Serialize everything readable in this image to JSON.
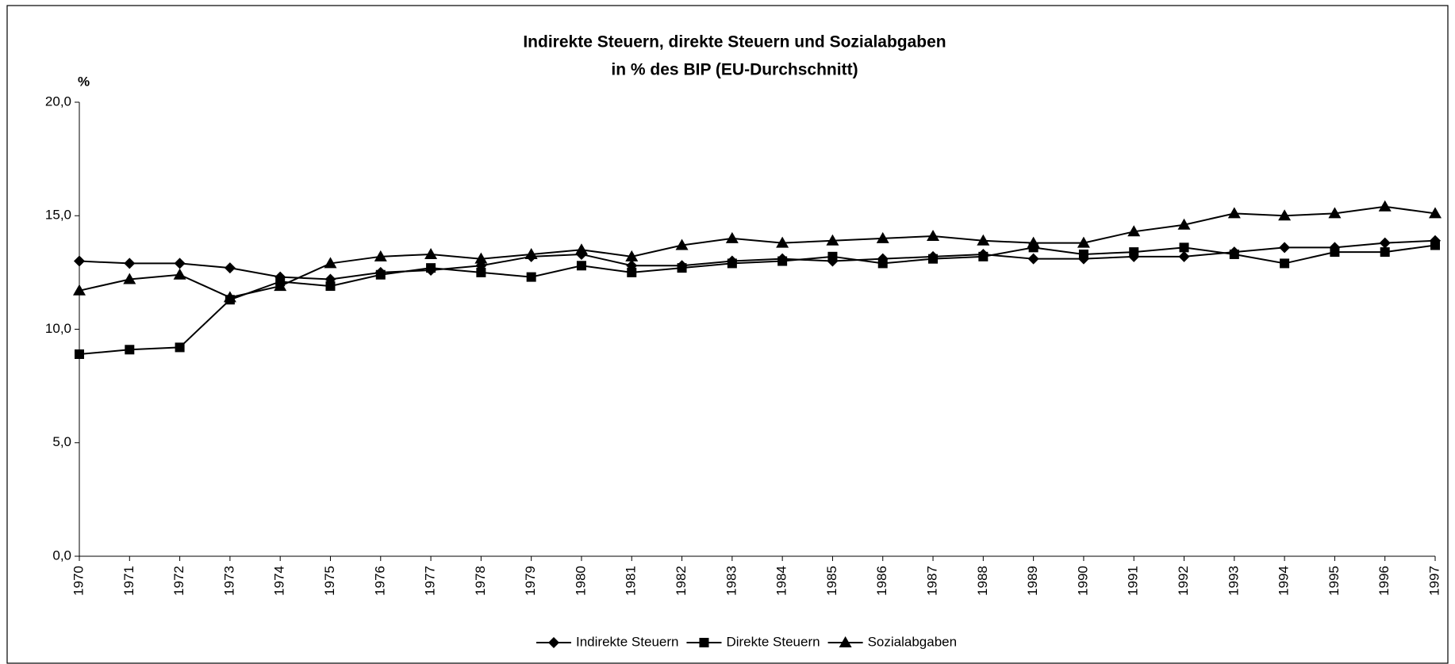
{
  "chart_data": {
    "type": "line",
    "title": "Indirekte Steuern, direkte Steuern und Sozialabgaben",
    "subtitle": "in % des BIP (EU-Durchschnitt)",
    "y_label": "%",
    "categories": [
      "1970",
      "1971",
      "1972",
      "1973",
      "1974",
      "1975",
      "1976",
      "1977",
      "1978",
      "1979",
      "1980",
      "1981",
      "1982",
      "1983",
      "1984",
      "1985",
      "1986",
      "1987",
      "1988",
      "1989",
      "1990",
      "1991",
      "1992",
      "1993",
      "1994",
      "1995",
      "1996",
      "1997"
    ],
    "series": [
      {
        "name": "Indirekte Steuern",
        "color": "#000000",
        "marker": "diamond",
        "values": [
          13.0,
          12.9,
          12.9,
          12.7,
          12.3,
          12.2,
          12.5,
          12.6,
          12.8,
          13.2,
          13.3,
          12.8,
          12.8,
          13.0,
          13.1,
          13.0,
          13.1,
          13.2,
          13.3,
          13.1,
          13.1,
          13.2,
          13.2,
          13.4,
          13.6,
          13.6,
          13.8,
          13.9
        ]
      },
      {
        "name": "Direkte Steuern",
        "color": "#000000",
        "marker": "square",
        "values": [
          8.9,
          9.1,
          9.2,
          11.3,
          12.1,
          11.9,
          12.4,
          12.7,
          12.5,
          12.3,
          12.8,
          12.5,
          12.7,
          12.9,
          13.0,
          13.2,
          12.9,
          13.1,
          13.2,
          13.6,
          13.3,
          13.4,
          13.6,
          13.3,
          12.9,
          13.4,
          13.4,
          13.7
        ]
      },
      {
        "name": "Sozialabgaben",
        "color": "#000000",
        "marker": "triangle",
        "values": [
          11.7,
          12.2,
          12.4,
          11.4,
          11.9,
          12.9,
          13.2,
          13.3,
          13.1,
          13.3,
          13.5,
          13.2,
          13.7,
          14.0,
          13.8,
          13.9,
          14.0,
          14.1,
          13.9,
          13.8,
          13.8,
          14.3,
          14.6,
          15.1,
          15.0,
          15.1,
          15.4,
          15.1
        ]
      }
    ],
    "ylim": [
      0,
      20
    ],
    "yticks": [
      {
        "value": 0,
        "label": "0,0"
      },
      {
        "value": 5,
        "label": "5,0"
      },
      {
        "value": 10,
        "label": "10,0"
      },
      {
        "value": 15,
        "label": "15,0"
      },
      {
        "value": 20,
        "label": "20,0"
      }
    ],
    "grid": false,
    "legend": "bottom"
  }
}
